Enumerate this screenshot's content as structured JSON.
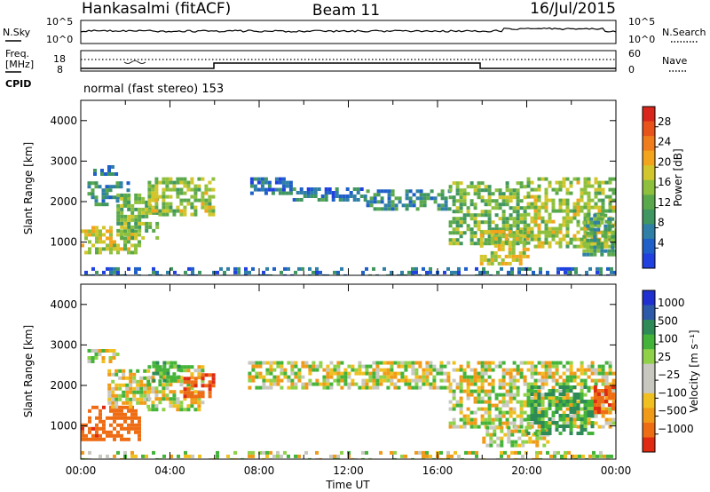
{
  "header": {
    "station": "Hankasalmi (fitACF)",
    "beam": "Beam 11",
    "date": "16/Jul/2015"
  },
  "summary_panel": {
    "left_label": "N.Sky",
    "right_label": "N.Search",
    "tick_top": "10^5",
    "tick_bottom": "10^0"
  },
  "freq_panel": {
    "left_label_1": "Freq.",
    "left_label_2": "[MHz]",
    "left_tick_top": "18",
    "left_tick_bottom": "8",
    "right_label": "Nave",
    "right_tick_top": "60",
    "right_tick_bottom": "0",
    "cpid_label": "CPID",
    "cpid_text": "normal (fast stereo) 153"
  },
  "chart_data": [
    {
      "type": "heatmap",
      "name": "power",
      "ylabel": "Slant Range [km]",
      "xlabel": "",
      "ylim": [
        180,
        4500
      ],
      "xlim": [
        0,
        24
      ],
      "y_ticks": [
        "1000",
        "2000",
        "3000",
        "4000"
      ],
      "colorbar": {
        "label": "Power [dB]",
        "ticks": [
          "4",
          "8",
          "12",
          "16",
          "20",
          "24",
          "28"
        ],
        "colors": [
          "#2040e0",
          "#1e5fc8",
          "#2f7fa6",
          "#3f9660",
          "#5aa84c",
          "#8ec03e",
          "#d2c62c",
          "#f2a51c",
          "#ef7d1c",
          "#e8521b",
          "#d8261c"
        ]
      },
      "echo_regions": [
        {
          "t0": 0.0,
          "t1": 2.6,
          "r0": 700,
          "r1": 1400,
          "level": 18
        },
        {
          "t0": 0.3,
          "t1": 2.2,
          "r0": 1900,
          "r1": 2500,
          "level": 10
        },
        {
          "t0": 0.4,
          "t1": 1.6,
          "r0": 2700,
          "r1": 2900,
          "level": 8
        },
        {
          "t0": 1.6,
          "t1": 3.4,
          "r0": 1100,
          "r1": 2200,
          "level": 14
        },
        {
          "t0": 3.0,
          "t1": 5.9,
          "r0": 1700,
          "r1": 2600,
          "level": 16
        },
        {
          "t0": 7.6,
          "t1": 9.5,
          "r0": 2200,
          "r1": 2600,
          "level": 6
        },
        {
          "t0": 9.5,
          "t1": 12.8,
          "r0": 2000,
          "r1": 2350,
          "level": 7
        },
        {
          "t0": 12.8,
          "t1": 16.5,
          "r0": 1800,
          "r1": 2300,
          "level": 9
        },
        {
          "t0": 16.5,
          "t1": 20.0,
          "r0": 1000,
          "r1": 2500,
          "level": 14
        },
        {
          "t0": 17.9,
          "t1": 20.0,
          "r0": 500,
          "r1": 1300,
          "level": 18
        },
        {
          "t0": 20.0,
          "t1": 23.9,
          "r0": 900,
          "r1": 2600,
          "level": 16
        },
        {
          "t0": 22.5,
          "t1": 24.0,
          "r0": 700,
          "r1": 1700,
          "level": 12
        },
        {
          "t0": 0.0,
          "t1": 24.0,
          "r0": 200,
          "r1": 380,
          "level": 6
        }
      ]
    },
    {
      "type": "heatmap",
      "name": "velocity",
      "ylabel": "Slant Range [km]",
      "xlabel": "Time UT",
      "ylim": [
        180,
        4500
      ],
      "xlim": [
        0,
        24
      ],
      "y_ticks": [
        "1000",
        "2000",
        "3000",
        "4000"
      ],
      "x_ticks": [
        "00:00",
        "04:00",
        "08:00",
        "12:00",
        "16:00",
        "20:00",
        "00:00"
      ],
      "colorbar": {
        "label": "Velocity [m s⁻¹]",
        "ticks": [
          "1000",
          "500",
          "100",
          "25",
          "−25",
          "−100",
          "−500",
          "−1000"
        ],
        "colors": [
          "#2030d0",
          "#2d5aa8",
          "#2e8b57",
          "#43b33a",
          "#8fd24a",
          "#c8c8c0",
          "#c8c8c0",
          "#f0c020",
          "#f09a18",
          "#ee6d14",
          "#e02a12"
        ]
      },
      "echo_regions": [
        {
          "t0": 0.0,
          "t1": 2.6,
          "r0": 700,
          "r1": 1500,
          "vel": -300
        },
        {
          "t0": 0.3,
          "t1": 1.6,
          "r0": 2600,
          "r1": 2900,
          "vel": 0
        },
        {
          "t0": 1.2,
          "t1": 3.0,
          "r0": 1500,
          "r1": 2400,
          "vel": 0
        },
        {
          "t0": 3.0,
          "t1": 5.4,
          "r0": 1400,
          "r1": 2500,
          "vel": 0
        },
        {
          "t0": 4.6,
          "t1": 6.0,
          "r0": 1700,
          "r1": 2300,
          "vel": -400
        },
        {
          "t0": 3.2,
          "t1": 4.4,
          "r0": 2100,
          "r1": 2600,
          "vel": 120
        },
        {
          "t0": 7.5,
          "t1": 16.5,
          "r0": 1900,
          "r1": 2600,
          "vel": 0
        },
        {
          "t0": 16.5,
          "t1": 23.9,
          "r0": 1000,
          "r1": 2600,
          "vel": 0
        },
        {
          "t0": 18.0,
          "t1": 21.0,
          "r0": 500,
          "r1": 1000,
          "vel": 0
        },
        {
          "t0": 20.0,
          "t1": 23.0,
          "r0": 800,
          "r1": 2000,
          "vel": 150
        },
        {
          "t0": 23.0,
          "t1": 24.0,
          "r0": 1300,
          "r1": 2000,
          "vel": -350
        },
        {
          "t0": 0.0,
          "t1": 24.0,
          "r0": 200,
          "r1": 380,
          "vel": 0
        }
      ]
    }
  ]
}
